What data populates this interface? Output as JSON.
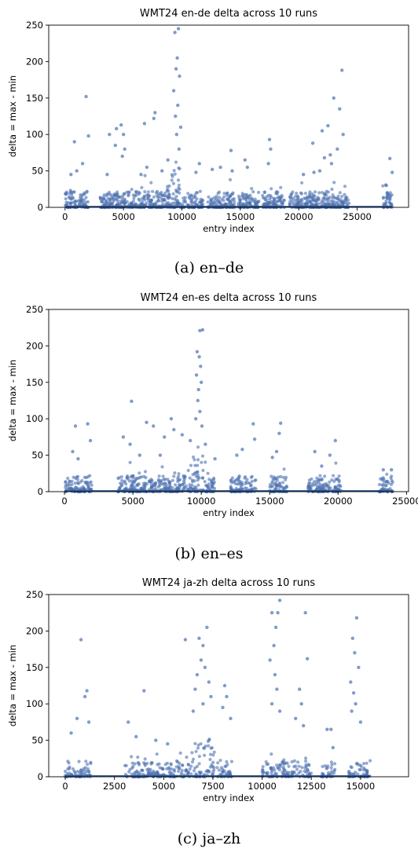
{
  "accent_color": "#4c72b0",
  "chart_data": [
    {
      "type": "scatter",
      "title": "WMT24 en-de delta across 10 runs",
      "caption": "(a) en–de",
      "xlabel": "entry index",
      "ylabel": "delta = max - min",
      "xlim": [
        -1400,
        29400
      ],
      "ylim": [
        0,
        250
      ],
      "xticks": [
        0,
        5000,
        10000,
        15000,
        20000,
        25000
      ],
      "yticks": [
        0,
        50,
        100,
        150,
        200,
        250
      ],
      "grid": false,
      "segments": [
        [
          0,
          2000
        ],
        [
          3000,
          11800
        ],
        [
          12200,
          14600
        ],
        [
          14800,
          16600
        ],
        [
          16900,
          18800
        ],
        [
          19200,
          24300
        ],
        [
          27200,
          28000
        ]
      ],
      "peak_x": 9500,
      "points": [
        [
          1800,
          152
        ],
        [
          800,
          90
        ],
        [
          9400,
          240
        ],
        [
          9700,
          245
        ],
        [
          9600,
          205
        ],
        [
          9500,
          190
        ],
        [
          9800,
          180
        ],
        [
          9300,
          160
        ],
        [
          9650,
          140
        ],
        [
          9450,
          125
        ],
        [
          9900,
          110
        ],
        [
          9550,
          100
        ],
        [
          9750,
          80
        ],
        [
          7700,
          130
        ],
        [
          7600,
          122
        ],
        [
          6800,
          115
        ],
        [
          4800,
          113
        ],
        [
          4400,
          108
        ],
        [
          5000,
          100
        ],
        [
          3800,
          100
        ],
        [
          4300,
          85
        ],
        [
          5100,
          80
        ],
        [
          2000,
          98
        ],
        [
          1500,
          60
        ],
        [
          1000,
          50
        ],
        [
          500,
          45
        ],
        [
          3600,
          45
        ],
        [
          4900,
          70
        ],
        [
          6500,
          45
        ],
        [
          7000,
          55
        ],
        [
          8300,
          50
        ],
        [
          8800,
          65
        ],
        [
          11200,
          48
        ],
        [
          11500,
          60
        ],
        [
          12600,
          52
        ],
        [
          13300,
          55
        ],
        [
          14200,
          78
        ],
        [
          14300,
          50
        ],
        [
          15400,
          65
        ],
        [
          15600,
          55
        ],
        [
          17500,
          93
        ],
        [
          17600,
          80
        ],
        [
          17400,
          60
        ],
        [
          20400,
          45
        ],
        [
          21200,
          88
        ],
        [
          21300,
          48
        ],
        [
          21800,
          50
        ],
        [
          22000,
          105
        ],
        [
          22500,
          112
        ],
        [
          22700,
          72
        ],
        [
          23000,
          150
        ],
        [
          23300,
          80
        ],
        [
          23500,
          135
        ],
        [
          23700,
          188
        ],
        [
          23800,
          100
        ],
        [
          22800,
          60
        ],
        [
          22200,
          68
        ],
        [
          27800,
          67
        ],
        [
          28000,
          48
        ],
        [
          27500,
          30
        ]
      ]
    },
    {
      "type": "scatter",
      "title": "WMT24 en-es delta across 10 runs",
      "caption": "(b) en–es",
      "xlabel": "entry index",
      "ylabel": "delta = max - min",
      "xlim": [
        -1150,
        25150
      ],
      "ylim": [
        0,
        250
      ],
      "xticks": [
        0,
        5000,
        10000,
        15000,
        20000,
        25000
      ],
      "yticks": [
        0,
        50,
        100,
        150,
        200,
        250
      ],
      "grid": false,
      "segments": [
        [
          0,
          2000
        ],
        [
          3900,
          11000
        ],
        [
          12100,
          14000
        ],
        [
          15000,
          16300
        ],
        [
          17800,
          20200
        ],
        [
          23000,
          24000
        ]
      ],
      "peak_x": 9800,
      "points": [
        [
          9900,
          221
        ],
        [
          10100,
          222
        ],
        [
          9700,
          192
        ],
        [
          9850,
          185
        ],
        [
          9950,
          172
        ],
        [
          9650,
          160
        ],
        [
          10000,
          150
        ],
        [
          9800,
          140
        ],
        [
          9750,
          125
        ],
        [
          9900,
          110
        ],
        [
          9600,
          100
        ],
        [
          10050,
          90
        ],
        [
          4900,
          124
        ],
        [
          4300,
          75
        ],
        [
          6000,
          95
        ],
        [
          6500,
          90
        ],
        [
          7800,
          100
        ],
        [
          7300,
          75
        ],
        [
          8000,
          85
        ],
        [
          8600,
          78
        ],
        [
          800,
          90
        ],
        [
          1700,
          93
        ],
        [
          1900,
          70
        ],
        [
          600,
          55
        ],
        [
          1000,
          45
        ],
        [
          4800,
          65
        ],
        [
          5500,
          50
        ],
        [
          7000,
          50
        ],
        [
          13800,
          93
        ],
        [
          13900,
          72
        ],
        [
          13000,
          58
        ],
        [
          12600,
          50
        ],
        [
          15800,
          94
        ],
        [
          15700,
          80
        ],
        [
          15500,
          55
        ],
        [
          15200,
          47
        ],
        [
          18300,
          55
        ],
        [
          19400,
          50
        ],
        [
          19800,
          70
        ],
        [
          18800,
          35
        ],
        [
          23300,
          30
        ],
        [
          23900,
          30
        ],
        [
          9200,
          70
        ],
        [
          10300,
          65
        ],
        [
          11000,
          45
        ]
      ]
    },
    {
      "type": "scatter",
      "title": "WMT24 ja-zh delta across 10 runs",
      "caption": "(c) ja–zh",
      "xlabel": "entry index",
      "ylabel": "delta = max - min",
      "xlim": [
        -840,
        17440
      ],
      "ylim": [
        0,
        250
      ],
      "xticks": [
        0,
        2500,
        5000,
        7500,
        10000,
        12500,
        15000
      ],
      "yticks": [
        0,
        50,
        100,
        150,
        200,
        250
      ],
      "grid": false,
      "segments": [
        [
          0,
          1300
        ],
        [
          3000,
          6000
        ],
        [
          6000,
          8500
        ],
        [
          10000,
          12500
        ],
        [
          13000,
          13700
        ],
        [
          14400,
          15500
        ]
      ],
      "peak_x": 7000,
      "points": [
        [
          800,
          188
        ],
        [
          1100,
          118
        ],
        [
          1000,
          110
        ],
        [
          600,
          80
        ],
        [
          300,
          60
        ],
        [
          1200,
          75
        ],
        [
          4000,
          118
        ],
        [
          3200,
          75
        ],
        [
          3600,
          55
        ],
        [
          4600,
          50
        ],
        [
          5200,
          45
        ],
        [
          6100,
          188
        ],
        [
          6800,
          190
        ],
        [
          7000,
          180
        ],
        [
          7200,
          205
        ],
        [
          6900,
          160
        ],
        [
          7100,
          150
        ],
        [
          6700,
          140
        ],
        [
          7300,
          130
        ],
        [
          6600,
          120
        ],
        [
          7400,
          110
        ],
        [
          7000,
          100
        ],
        [
          6500,
          90
        ],
        [
          8100,
          125
        ],
        [
          8200,
          110
        ],
        [
          8000,
          95
        ],
        [
          8400,
          80
        ],
        [
          10500,
          225
        ],
        [
          10900,
          242
        ],
        [
          10800,
          225
        ],
        [
          10700,
          205
        ],
        [
          10600,
          180
        ],
        [
          10400,
          160
        ],
        [
          10650,
          140
        ],
        [
          10750,
          120
        ],
        [
          10500,
          100
        ],
        [
          10900,
          90
        ],
        [
          12200,
          225
        ],
        [
          12300,
          162
        ],
        [
          11900,
          120
        ],
        [
          12000,
          100
        ],
        [
          11700,
          80
        ],
        [
          12100,
          70
        ],
        [
          13300,
          65
        ],
        [
          13500,
          65
        ],
        [
          13600,
          40
        ],
        [
          14800,
          218
        ],
        [
          14600,
          190
        ],
        [
          14700,
          170
        ],
        [
          14900,
          150
        ],
        [
          14500,
          130
        ],
        [
          14650,
          115
        ],
        [
          14750,
          100
        ],
        [
          14550,
          90
        ],
        [
          15000,
          75
        ]
      ]
    }
  ]
}
